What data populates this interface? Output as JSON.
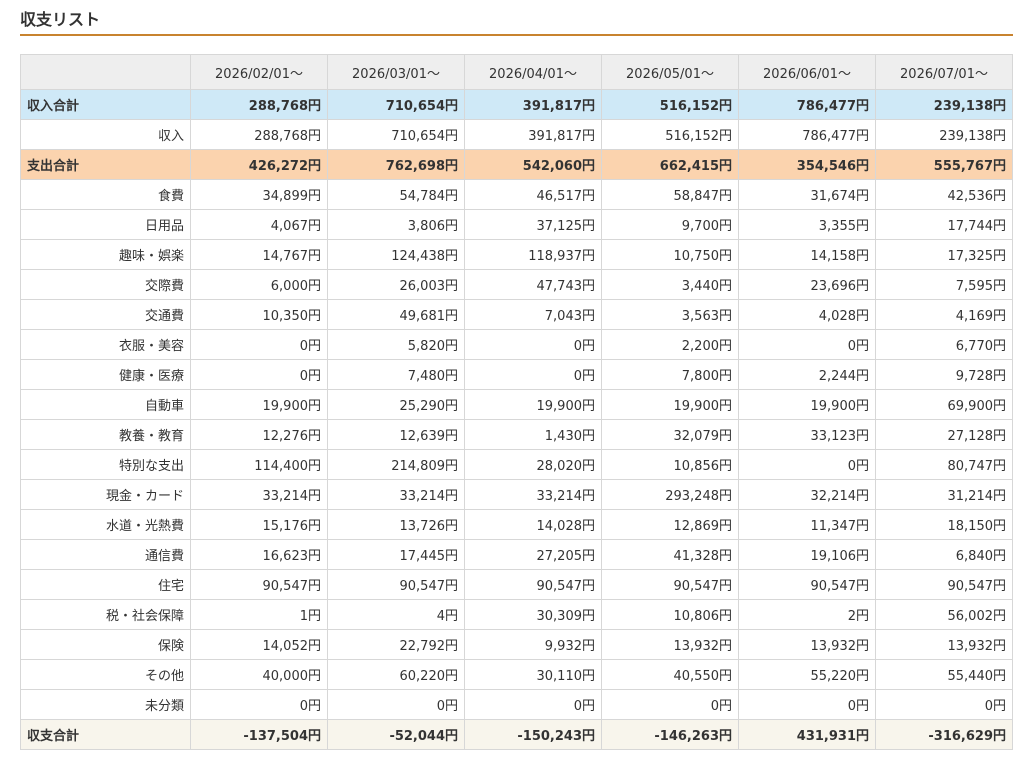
{
  "page": {
    "title": "収支リスト"
  },
  "table": {
    "months": [
      "2026/02/01〜",
      "2026/03/01〜",
      "2026/04/01〜",
      "2026/05/01〜",
      "2026/06/01〜",
      "2026/07/01〜"
    ],
    "rows": [
      {
        "kind": "income-total",
        "label": "収入合計",
        "values": [
          "288,768円",
          "710,654円",
          "391,817円",
          "516,152円",
          "786,477円",
          "239,138円"
        ]
      },
      {
        "kind": "item",
        "label": "収入",
        "values": [
          "288,768円",
          "710,654円",
          "391,817円",
          "516,152円",
          "786,477円",
          "239,138円"
        ]
      },
      {
        "kind": "expense-total",
        "label": "支出合計",
        "values": [
          "426,272円",
          "762,698円",
          "542,060円",
          "662,415円",
          "354,546円",
          "555,767円"
        ]
      },
      {
        "kind": "item",
        "label": "食費",
        "values": [
          "34,899円",
          "54,784円",
          "46,517円",
          "58,847円",
          "31,674円",
          "42,536円"
        ]
      },
      {
        "kind": "item",
        "label": "日用品",
        "values": [
          "4,067円",
          "3,806円",
          "37,125円",
          "9,700円",
          "3,355円",
          "17,744円"
        ]
      },
      {
        "kind": "item",
        "label": "趣味・娯楽",
        "values": [
          "14,767円",
          "124,438円",
          "118,937円",
          "10,750円",
          "14,158円",
          "17,325円"
        ]
      },
      {
        "kind": "item",
        "label": "交際費",
        "values": [
          "6,000円",
          "26,003円",
          "47,743円",
          "3,440円",
          "23,696円",
          "7,595円"
        ]
      },
      {
        "kind": "item",
        "label": "交通費",
        "values": [
          "10,350円",
          "49,681円",
          "7,043円",
          "3,563円",
          "4,028円",
          "4,169円"
        ]
      },
      {
        "kind": "item",
        "label": "衣服・美容",
        "values": [
          "0円",
          "5,820円",
          "0円",
          "2,200円",
          "0円",
          "6,770円"
        ]
      },
      {
        "kind": "item",
        "label": "健康・医療",
        "values": [
          "0円",
          "7,480円",
          "0円",
          "7,800円",
          "2,244円",
          "9,728円"
        ]
      },
      {
        "kind": "item",
        "label": "自動車",
        "values": [
          "19,900円",
          "25,290円",
          "19,900円",
          "19,900円",
          "19,900円",
          "69,900円"
        ]
      },
      {
        "kind": "item",
        "label": "教養・教育",
        "values": [
          "12,276円",
          "12,639円",
          "1,430円",
          "32,079円",
          "33,123円",
          "27,128円"
        ]
      },
      {
        "kind": "item",
        "label": "特別な支出",
        "values": [
          "114,400円",
          "214,809円",
          "28,020円",
          "10,856円",
          "0円",
          "80,747円"
        ]
      },
      {
        "kind": "item",
        "label": "現金・カード",
        "values": [
          "33,214円",
          "33,214円",
          "33,214円",
          "293,248円",
          "32,214円",
          "31,214円"
        ]
      },
      {
        "kind": "item",
        "label": "水道・光熱費",
        "values": [
          "15,176円",
          "13,726円",
          "14,028円",
          "12,869円",
          "11,347円",
          "18,150円"
        ]
      },
      {
        "kind": "item",
        "label": "通信費",
        "values": [
          "16,623円",
          "17,445円",
          "27,205円",
          "41,328円",
          "19,106円",
          "6,840円"
        ]
      },
      {
        "kind": "item",
        "label": "住宅",
        "values": [
          "90,547円",
          "90,547円",
          "90,547円",
          "90,547円",
          "90,547円",
          "90,547円"
        ]
      },
      {
        "kind": "item",
        "label": "税・社会保障",
        "values": [
          "1円",
          "4円",
          "30,309円",
          "10,806円",
          "2円",
          "56,002円"
        ]
      },
      {
        "kind": "item",
        "label": "保険",
        "values": [
          "14,052円",
          "22,792円",
          "9,932円",
          "13,932円",
          "13,932円",
          "13,932円"
        ]
      },
      {
        "kind": "item",
        "label": "その他",
        "values": [
          "40,000円",
          "60,220円",
          "30,110円",
          "40,550円",
          "55,220円",
          "55,440円"
        ]
      },
      {
        "kind": "item",
        "label": "未分類",
        "values": [
          "0円",
          "0円",
          "0円",
          "0円",
          "0円",
          "0円"
        ]
      },
      {
        "kind": "net-total",
        "label": "収支合計",
        "values": [
          "-137,504円",
          "-52,044円",
          "-150,243円",
          "-146,263円",
          "431,931円",
          "-316,629円"
        ]
      }
    ]
  }
}
